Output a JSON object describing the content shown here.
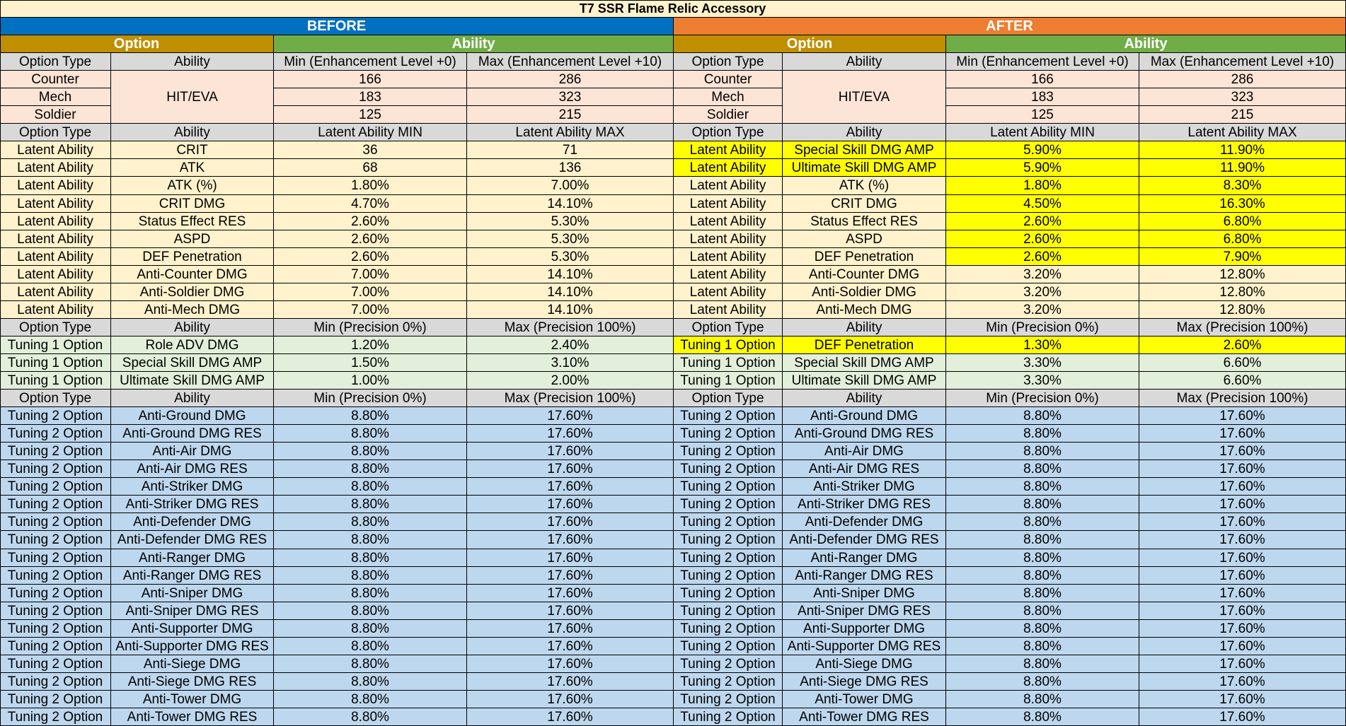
{
  "title": "T7 SSR Flame Relic Accessory",
  "colors": {
    "before": "#0070c0",
    "after": "#ed7d31",
    "option": "#bf8f00",
    "ability": "#70ad47",
    "header": "#d9d9d9",
    "base": "#fce4d6",
    "latent": "#fff2cc",
    "tuning1": "#e2efda",
    "tuning2": "#bdd7ee",
    "highlight": "#ffff00"
  },
  "groups": {
    "before": "BEFORE",
    "after": "AFTER"
  },
  "group_headers": {
    "option": "Option",
    "ability": "Ability"
  },
  "sections": [
    {
      "id": "base",
      "header": [
        "Option Type",
        "Ability",
        "Min (Enhancement Level +0)",
        "Max (Enhancement Level +10)"
      ],
      "merged_ability": "HIT/EVA",
      "rows": [
        {
          "before": [
            "Counter",
            "HIT/EVA",
            "166",
            "286"
          ],
          "after": [
            "Counter",
            "HIT/EVA",
            "166",
            "286"
          ]
        },
        {
          "before": [
            "Mech",
            "HIT/EVA",
            "183",
            "323"
          ],
          "after": [
            "Mech",
            "HIT/EVA",
            "183",
            "323"
          ]
        },
        {
          "before": [
            "Soldier",
            "HIT/EVA",
            "125",
            "215"
          ],
          "after": [
            "Soldier",
            "HIT/EVA",
            "125",
            "215"
          ]
        }
      ]
    },
    {
      "id": "latent",
      "header": [
        "Option Type",
        "Ability",
        "Latent Ability MIN",
        "Latent Ability MAX"
      ],
      "rows": [
        {
          "before": [
            "Latent Ability",
            "CRIT",
            "36",
            "71"
          ],
          "after": [
            "Latent Ability",
            "Special Skill DMG AMP",
            "5.90%",
            "11.90%"
          ],
          "hl": [
            1,
            1,
            1,
            1
          ]
        },
        {
          "before": [
            "Latent Ability",
            "ATK",
            "68",
            "136"
          ],
          "after": [
            "Latent Ability",
            "Ultimate Skill DMG AMP",
            "5.90%",
            "11.90%"
          ],
          "hl": [
            1,
            1,
            1,
            1
          ]
        },
        {
          "before": [
            "Latent Ability",
            "ATK (%)",
            "1.80%",
            "7.00%"
          ],
          "after": [
            "Latent Ability",
            "ATK (%)",
            "1.80%",
            "8.30%"
          ],
          "hl": [
            0,
            0,
            1,
            1
          ]
        },
        {
          "before": [
            "Latent Ability",
            "CRIT DMG",
            "4.70%",
            "14.10%"
          ],
          "after": [
            "Latent Ability",
            "CRIT DMG",
            "4.50%",
            "16.30%"
          ],
          "hl": [
            0,
            0,
            1,
            1
          ]
        },
        {
          "before": [
            "Latent Ability",
            "Status Effect RES",
            "2.60%",
            "5.30%"
          ],
          "after": [
            "Latent Ability",
            "Status Effect RES",
            "2.60%",
            "6.80%"
          ],
          "hl": [
            0,
            0,
            1,
            1
          ]
        },
        {
          "before": [
            "Latent Ability",
            "ASPD",
            "2.60%",
            "5.30%"
          ],
          "after": [
            "Latent Ability",
            "ASPD",
            "2.60%",
            "6.80%"
          ],
          "hl": [
            0,
            0,
            1,
            1
          ]
        },
        {
          "before": [
            "Latent Ability",
            "DEF Penetration",
            "2.60%",
            "5.30%"
          ],
          "after": [
            "Latent Ability",
            "DEF Penetration",
            "2.60%",
            "7.90%"
          ],
          "hl": [
            0,
            0,
            1,
            1
          ]
        },
        {
          "before": [
            "Latent Ability",
            "Anti-Counter DMG",
            "7.00%",
            "14.10%"
          ],
          "after": [
            "Latent Ability",
            "Anti-Counter DMG",
            "3.20%",
            "12.80%"
          ],
          "hl": [
            0,
            0,
            0,
            0
          ]
        },
        {
          "before": [
            "Latent Ability",
            "Anti-Soldier DMG",
            "7.00%",
            "14.10%"
          ],
          "after": [
            "Latent Ability",
            "Anti-Soldier DMG",
            "3.20%",
            "12.80%"
          ],
          "hl": [
            0,
            0,
            0,
            0
          ]
        },
        {
          "before": [
            "Latent Ability",
            "Anti-Mech DMG",
            "7.00%",
            "14.10%"
          ],
          "after": [
            "Latent Ability",
            "Anti-Mech DMG",
            "3.20%",
            "12.80%"
          ],
          "hl": [
            0,
            0,
            0,
            0
          ]
        }
      ]
    },
    {
      "id": "tuning1",
      "header": [
        "Option Type",
        "Ability",
        "Min (Precision 0%)",
        "Max (Precision 100%)"
      ],
      "rows": [
        {
          "before": [
            "Tuning 1 Option",
            "Role ADV DMG",
            "1.20%",
            "2.40%"
          ],
          "after": [
            "Tuning 1 Option",
            "DEF Penetration",
            "1.30%",
            "2.60%"
          ],
          "hl": [
            1,
            1,
            1,
            1
          ]
        },
        {
          "before": [
            "Tuning 1 Option",
            "Special Skill DMG AMP",
            "1.50%",
            "3.10%"
          ],
          "after": [
            "Tuning 1 Option",
            "Special Skill DMG AMP",
            "3.30%",
            "6.60%"
          ],
          "hl": [
            0,
            0,
            0,
            0
          ]
        },
        {
          "before": [
            "Tuning 1 Option",
            "Ultimate Skill DMG AMP",
            "1.00%",
            "2.00%"
          ],
          "after": [
            "Tuning 1 Option",
            "Ultimate Skill DMG AMP",
            "3.30%",
            "6.60%"
          ],
          "hl": [
            0,
            0,
            0,
            0
          ]
        }
      ]
    },
    {
      "id": "tuning2",
      "header": [
        "Option Type",
        "Ability",
        "Min (Precision 0%)",
        "Max (Precision 100%)"
      ],
      "rows": [
        {
          "before": [
            "Tuning 2 Option",
            "Anti-Ground DMG",
            "8.80%",
            "17.60%"
          ],
          "after": [
            "Tuning 2 Option",
            "Anti-Ground DMG",
            "8.80%",
            "17.60%"
          ]
        },
        {
          "before": [
            "Tuning 2 Option",
            "Anti-Ground DMG RES",
            "8.80%",
            "17.60%"
          ],
          "after": [
            "Tuning 2 Option",
            "Anti-Ground DMG RES",
            "8.80%",
            "17.60%"
          ]
        },
        {
          "before": [
            "Tuning 2 Option",
            "Anti-Air DMG",
            "8.80%",
            "17.60%"
          ],
          "after": [
            "Tuning 2 Option",
            "Anti-Air DMG",
            "8.80%",
            "17.60%"
          ]
        },
        {
          "before": [
            "Tuning 2 Option",
            "Anti-Air DMG RES",
            "8.80%",
            "17.60%"
          ],
          "after": [
            "Tuning 2 Option",
            "Anti-Air DMG RES",
            "8.80%",
            "17.60%"
          ]
        },
        {
          "before": [
            "Tuning 2 Option",
            "Anti-Striker DMG",
            "8.80%",
            "17.60%"
          ],
          "after": [
            "Tuning 2 Option",
            "Anti-Striker DMG",
            "8.80%",
            "17.60%"
          ]
        },
        {
          "before": [
            "Tuning 2 Option",
            "Anti-Striker DMG RES",
            "8.80%",
            "17.60%"
          ],
          "after": [
            "Tuning 2 Option",
            "Anti-Striker DMG RES",
            "8.80%",
            "17.60%"
          ]
        },
        {
          "before": [
            "Tuning 2 Option",
            "Anti-Defender DMG",
            "8.80%",
            "17.60%"
          ],
          "after": [
            "Tuning 2 Option",
            "Anti-Defender DMG",
            "8.80%",
            "17.60%"
          ]
        },
        {
          "before": [
            "Tuning 2 Option",
            "Anti-Defender DMG RES",
            "8.80%",
            "17.60%"
          ],
          "after": [
            "Tuning 2 Option",
            "Anti-Defender DMG RES",
            "8.80%",
            "17.60%"
          ]
        },
        {
          "before": [
            "Tuning 2 Option",
            "Anti-Ranger DMG",
            "8.80%",
            "17.60%"
          ],
          "after": [
            "Tuning 2 Option",
            "Anti-Ranger DMG",
            "8.80%",
            "17.60%"
          ]
        },
        {
          "before": [
            "Tuning 2 Option",
            "Anti-Ranger DMG RES",
            "8.80%",
            "17.60%"
          ],
          "after": [
            "Tuning 2 Option",
            "Anti-Ranger DMG RES",
            "8.80%",
            "17.60%"
          ]
        },
        {
          "before": [
            "Tuning 2 Option",
            "Anti-Sniper DMG",
            "8.80%",
            "17.60%"
          ],
          "after": [
            "Tuning 2 Option",
            "Anti-Sniper DMG",
            "8.80%",
            "17.60%"
          ]
        },
        {
          "before": [
            "Tuning 2 Option",
            "Anti-Sniper DMG RES",
            "8.80%",
            "17.60%"
          ],
          "after": [
            "Tuning 2 Option",
            "Anti-Sniper DMG RES",
            "8.80%",
            "17.60%"
          ]
        },
        {
          "before": [
            "Tuning 2 Option",
            "Anti-Supporter DMG",
            "8.80%",
            "17.60%"
          ],
          "after": [
            "Tuning 2 Option",
            "Anti-Supporter DMG",
            "8.80%",
            "17.60%"
          ]
        },
        {
          "before": [
            "Tuning 2 Option",
            "Anti-Supporter DMG RES",
            "8.80%",
            "17.60%"
          ],
          "after": [
            "Tuning 2 Option",
            "Anti-Supporter DMG RES",
            "8.80%",
            "17.60%"
          ]
        },
        {
          "before": [
            "Tuning 2 Option",
            "Anti-Siege DMG",
            "8.80%",
            "17.60%"
          ],
          "after": [
            "Tuning 2 Option",
            "Anti-Siege DMG",
            "8.80%",
            "17.60%"
          ]
        },
        {
          "before": [
            "Tuning 2 Option",
            "Anti-Siege DMG RES",
            "8.80%",
            "17.60%"
          ],
          "after": [
            "Tuning 2 Option",
            "Anti-Siege DMG RES",
            "8.80%",
            "17.60%"
          ]
        },
        {
          "before": [
            "Tuning 2 Option",
            "Anti-Tower DMG",
            "8.80%",
            "17.60%"
          ],
          "after": [
            "Tuning 2 Option",
            "Anti-Tower DMG",
            "8.80%",
            "17.60%"
          ]
        },
        {
          "before": [
            "Tuning 2 Option",
            "Anti-Tower DMG RES",
            "8.80%",
            "17.60%"
          ],
          "after": [
            "Tuning 2 Option",
            "Anti-Tower DMG RES",
            "8.80%",
            "17.60%"
          ]
        }
      ]
    }
  ]
}
